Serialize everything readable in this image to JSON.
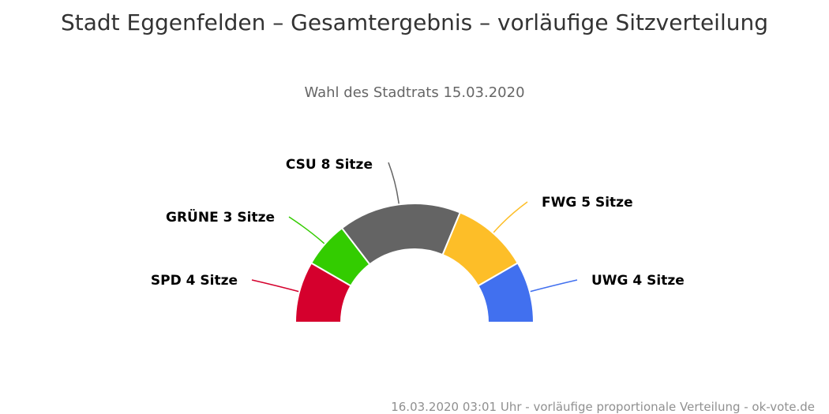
{
  "title": "Stadt Eggenfelden – Gesamtergebnis – vorläufige Sitzverteilung",
  "subtitle": "Wahl des Stadtrats 15.03.2020",
  "footer": "16.03.2020 03:01 Uhr - vorläufige proportionale Verteilung - ok-vote.de",
  "chart_data": {
    "type": "pie",
    "variant": "semicircle",
    "title": "Stadt Eggenfelden – Gesamtergebnis – vorläufige Sitzverteilung",
    "subtitle": "Wahl des Stadtrats 15.03.2020",
    "series": [
      {
        "name": "SPD",
        "value": 4,
        "label": "SPD 4 Sitze",
        "color": "#d5002d"
      },
      {
        "name": "GRÜNE",
        "value": 3,
        "label": "GRÜNE 3 Sitze",
        "color": "#33cc00"
      },
      {
        "name": "CSU",
        "value": 8,
        "label": "CSU 8 Sitze",
        "color": "#646464"
      },
      {
        "name": "FWG",
        "value": 5,
        "label": "FWG 5 Sitze",
        "color": "#fdbe28"
      },
      {
        "name": "UWG",
        "value": 4,
        "label": "UWG 4 Sitze",
        "color": "#4170ef"
      }
    ]
  }
}
